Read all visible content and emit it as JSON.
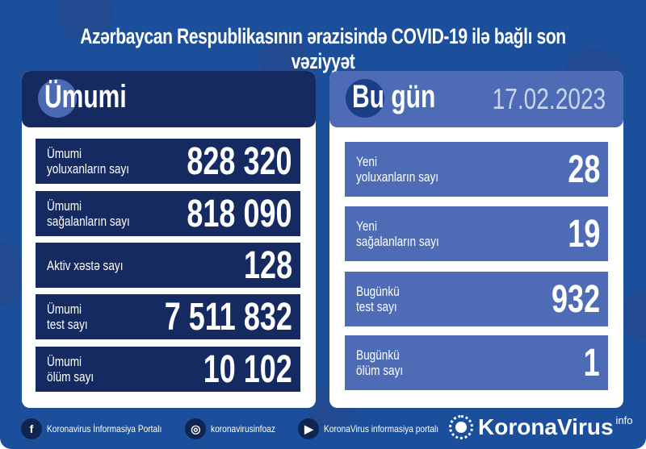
{
  "title": "Azərbaycan Respublikasının ərazisində COVID-19 ilə bağlı son vəziyyət",
  "total": {
    "heading": "Ümumi",
    "rows": [
      {
        "label1": "Ümumi",
        "label2": "yoluxanların sayı",
        "value": "828 320"
      },
      {
        "label1": "Ümumi",
        "label2": "sağalanların sayı",
        "value": "818 090"
      },
      {
        "label1": "Aktiv xəstə sayı",
        "label2": "",
        "value": "128"
      },
      {
        "label1": "Ümumi",
        "label2": "test sayı",
        "value": "7 511 832"
      },
      {
        "label1": "Ümumi",
        "label2": "ölüm sayı",
        "value": "10 102"
      }
    ]
  },
  "today": {
    "heading": "Bu gün",
    "date": "17.02.2023",
    "rows": [
      {
        "label1": "Yeni",
        "label2": "yoluxanların sayı",
        "value": "28"
      },
      {
        "label1": "Yeni",
        "label2": "sağalanların sayı",
        "value": "19"
      },
      {
        "label1": "Bugünkü",
        "label2": "test sayı",
        "value": "932"
      },
      {
        "label1": "Bugünkü",
        "label2": "ölüm sayı",
        "value": "1"
      }
    ]
  },
  "footer": {
    "facebook": "Koronavirus İnformasiya Portalı",
    "instagram": "koronavirusinfoaz",
    "youtube": "KoronaVirus informasiya portalı",
    "brand": "KoronaVirus",
    "brand_sup": "info"
  },
  "colors": {
    "background": "#1b4f9c",
    "navy": "#152a61",
    "accent": "#4d6cb5"
  }
}
